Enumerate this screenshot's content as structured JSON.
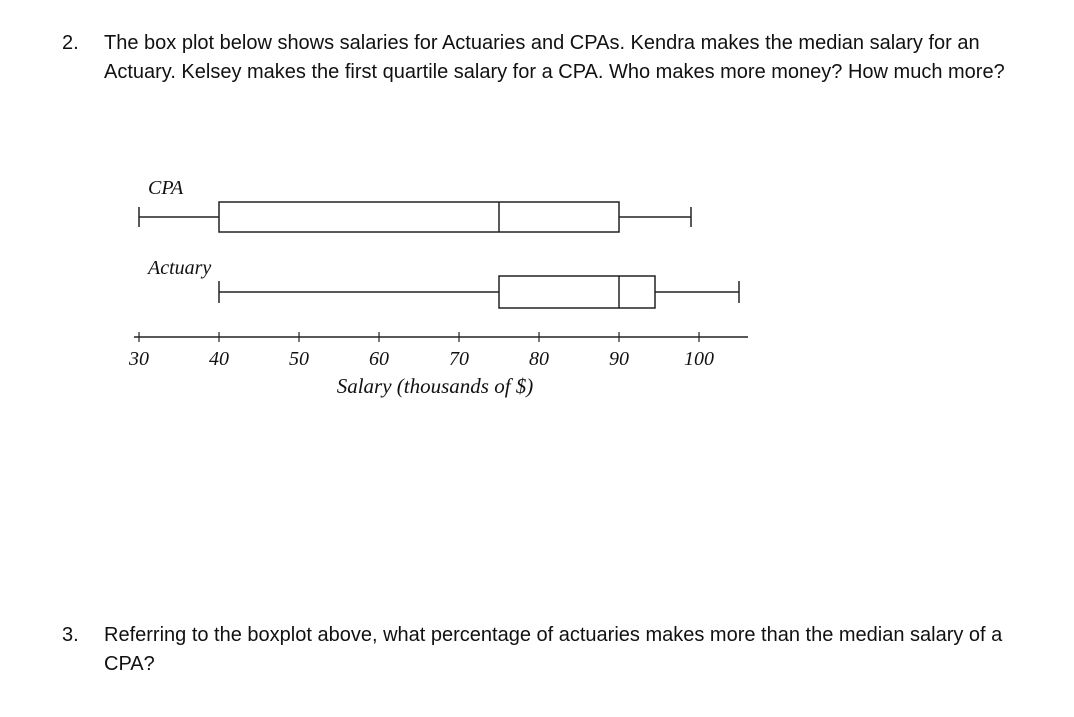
{
  "questions": [
    {
      "number": "2.",
      "text": "The box plot below shows salaries for Actuaries and CPAs. Kendra makes the median salary for an Actuary. Kelsey makes the first quartile salary for a CPA.  Who makes more money? How much more?"
    },
    {
      "number": "3.",
      "text": "Referring to the boxplot above, what percentage of actuaries makes more than the median salary of a CPA?"
    }
  ],
  "chart_data": {
    "type": "boxplot",
    "xlabel": "Salary (thousands of $)",
    "xlim": [
      30,
      100
    ],
    "ticks": [
      30,
      40,
      50,
      60,
      70,
      80,
      90,
      100
    ],
    "series": [
      {
        "name": "CPA",
        "min": 30,
        "q1": 40,
        "median": 75,
        "q3": 90,
        "max": 99
      },
      {
        "name": "Actuary",
        "min": 40,
        "q1": 75,
        "median": 90,
        "q3": 94.5,
        "max": 105
      }
    ]
  }
}
